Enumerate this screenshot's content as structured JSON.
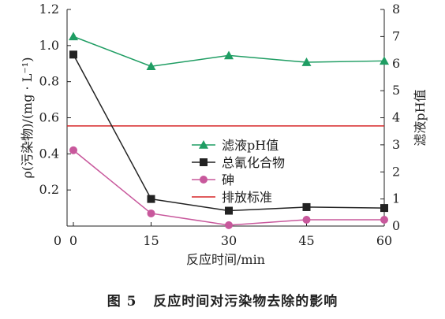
{
  "caption": {
    "figure_number": "图 5",
    "title": "反应时间对污染物去除的影响"
  },
  "chart_data": {
    "type": "line",
    "x": [
      0,
      15,
      30,
      45,
      60
    ],
    "x_ticks": [
      "0",
      "15",
      "30",
      "45",
      "60"
    ],
    "xlim": [
      0,
      60
    ],
    "xlabel": "反应时间/min",
    "ylabel_left": "ρ(污染物)/(mg · L⁻¹)",
    "ylim_left": [
      0,
      1.2
    ],
    "yticks_left": [
      "0.2",
      "0.4",
      "0.6",
      "0.8",
      "1.0",
      "1.2"
    ],
    "ylabel_right": "滤液pH值",
    "ylim_right": [
      0,
      8
    ],
    "yticks_right": [
      "0",
      "1",
      "2",
      "3",
      "4",
      "5",
      "6",
      "7",
      "8"
    ],
    "grid": false,
    "legend_position": "center-right",
    "series": [
      {
        "name": "滤液pH值",
        "axis": "right",
        "marker": "triangle",
        "color": "#1f9d63",
        "values": [
          7.0,
          5.9,
          6.3,
          6.05,
          6.1
        ]
      },
      {
        "name": "总氰化合物",
        "axis": "left",
        "marker": "square",
        "color": "#222222",
        "values": [
          0.95,
          0.15,
          0.085,
          0.105,
          0.1
        ]
      },
      {
        "name": "砷",
        "axis": "left",
        "marker": "circle",
        "color": "#c8589c",
        "values": [
          0.42,
          0.07,
          0.005,
          0.035,
          0.035
        ]
      }
    ],
    "reference_line": {
      "name": "排放标准",
      "axis": "left",
      "value": 0.555,
      "color": "#d62728"
    }
  }
}
